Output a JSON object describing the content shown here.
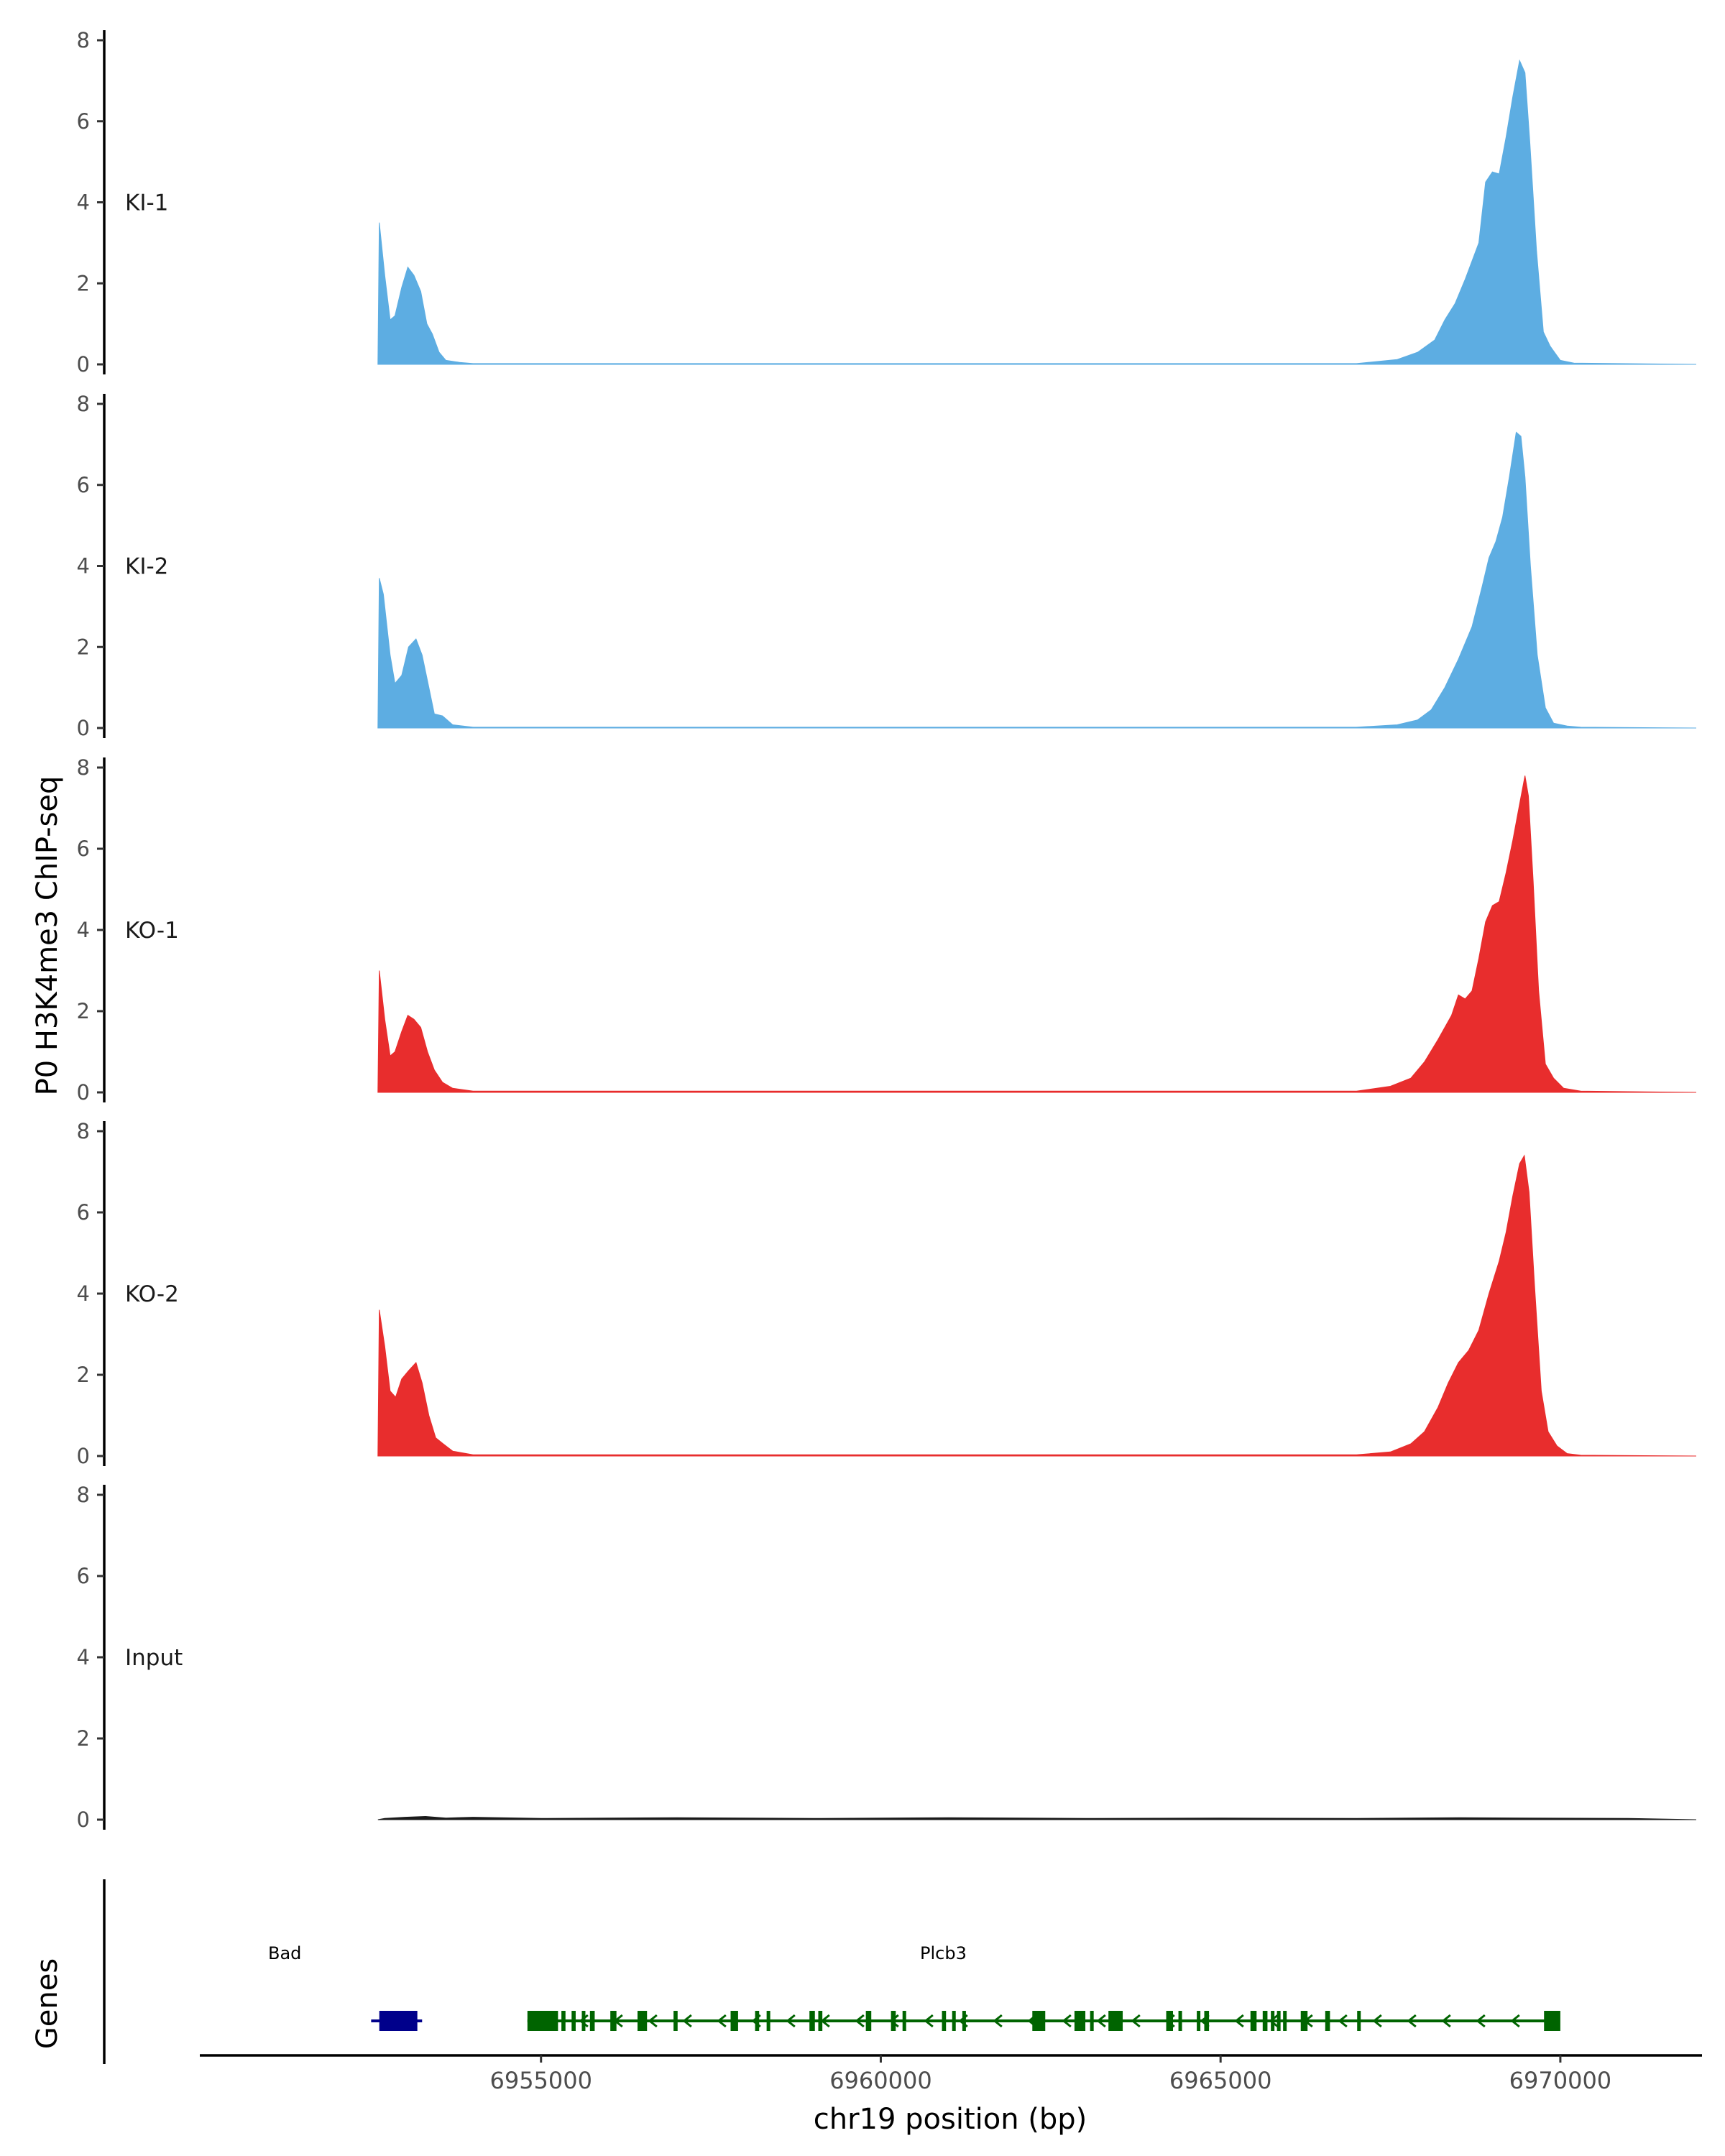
{
  "chart_data": {
    "type": "area",
    "ylabel": "P0 H3K4me3 ChIP-seq",
    "xlabel": "chr19 position (bp)",
    "gene_track_label": "Genes",
    "ylim": [
      0,
      8
    ],
    "yticks": [
      "0",
      "2",
      "4",
      "6",
      "8"
    ],
    "xlim": [
      6950000,
      6972000
    ],
    "xticks": [
      {
        "value": 6955000,
        "label": "6955000"
      },
      {
        "value": 6960000,
        "label": "6960000"
      },
      {
        "value": 6965000,
        "label": "6965000"
      },
      {
        "value": 6970000,
        "label": "6970000"
      }
    ],
    "tracks": [
      {
        "name": "KI-1",
        "color": "#5dade2",
        "points": [
          [
            6952600,
            0
          ],
          [
            6952620,
            3.5
          ],
          [
            6952700,
            2.2
          ],
          [
            6952780,
            1.1
          ],
          [
            6952850,
            1.2
          ],
          [
            6952950,
            1.9
          ],
          [
            6953040,
            2.4
          ],
          [
            6953130,
            2.2
          ],
          [
            6953230,
            1.8
          ],
          [
            6953320,
            1.0
          ],
          [
            6953400,
            0.75
          ],
          [
            6953500,
            0.3
          ],
          [
            6953600,
            0.1
          ],
          [
            6953800,
            0.05
          ],
          [
            6954000,
            0.02
          ],
          [
            6967000,
            0.02
          ],
          [
            6967600,
            0.12
          ],
          [
            6967900,
            0.3
          ],
          [
            6968150,
            0.6
          ],
          [
            6968300,
            1.1
          ],
          [
            6968450,
            1.5
          ],
          [
            6968600,
            2.1
          ],
          [
            6968800,
            3.0
          ],
          [
            6968900,
            4.5
          ],
          [
            6969000,
            4.75
          ],
          [
            6969100,
            4.7
          ],
          [
            6969200,
            5.6
          ],
          [
            6969300,
            6.6
          ],
          [
            6969400,
            7.5
          ],
          [
            6969480,
            7.2
          ],
          [
            6969550,
            5.5
          ],
          [
            6969650,
            2.8
          ],
          [
            6969750,
            0.8
          ],
          [
            6969850,
            0.45
          ],
          [
            6970000,
            0.1
          ],
          [
            6970200,
            0.03
          ],
          [
            6972000,
            0
          ]
        ]
      },
      {
        "name": "KI-2",
        "color": "#5dade2",
        "points": [
          [
            6952600,
            0
          ],
          [
            6952620,
            3.7
          ],
          [
            6952680,
            3.3
          ],
          [
            6952780,
            1.8
          ],
          [
            6952850,
            1.1
          ],
          [
            6952950,
            1.3
          ],
          [
            6953050,
            2.0
          ],
          [
            6953160,
            2.2
          ],
          [
            6953250,
            1.8
          ],
          [
            6953350,
            1.0
          ],
          [
            6953430,
            0.35
          ],
          [
            6953550,
            0.3
          ],
          [
            6953700,
            0.08
          ],
          [
            6954000,
            0.02
          ],
          [
            6967000,
            0.02
          ],
          [
            6967600,
            0.08
          ],
          [
            6967900,
            0.2
          ],
          [
            6968100,
            0.45
          ],
          [
            6968300,
            1.0
          ],
          [
            6968500,
            1.7
          ],
          [
            6968700,
            2.5
          ],
          [
            6968850,
            3.5
          ],
          [
            6968950,
            4.2
          ],
          [
            6969050,
            4.6
          ],
          [
            6969150,
            5.2
          ],
          [
            6969250,
            6.2
          ],
          [
            6969350,
            7.3
          ],
          [
            6969420,
            7.2
          ],
          [
            6969480,
            6.2
          ],
          [
            6969560,
            4.0
          ],
          [
            6969660,
            1.8
          ],
          [
            6969780,
            0.5
          ],
          [
            6969900,
            0.12
          ],
          [
            6970100,
            0.05
          ],
          [
            6970300,
            0.02
          ],
          [
            6972000,
            0
          ]
        ]
      },
      {
        "name": "KO-1",
        "color": "#e82d2d",
        "points": [
          [
            6952600,
            0
          ],
          [
            6952620,
            3.0
          ],
          [
            6952700,
            1.8
          ],
          [
            6952780,
            0.9
          ],
          [
            6952850,
            1.0
          ],
          [
            6952950,
            1.5
          ],
          [
            6953040,
            1.9
          ],
          [
            6953130,
            1.8
          ],
          [
            6953230,
            1.6
          ],
          [
            6953330,
            1.0
          ],
          [
            6953430,
            0.55
          ],
          [
            6953550,
            0.25
          ],
          [
            6953700,
            0.1
          ],
          [
            6954000,
            0.03
          ],
          [
            6967000,
            0.03
          ],
          [
            6967500,
            0.15
          ],
          [
            6967800,
            0.35
          ],
          [
            6968000,
            0.75
          ],
          [
            6968200,
            1.3
          ],
          [
            6968400,
            1.9
          ],
          [
            6968500,
            2.4
          ],
          [
            6968600,
            2.3
          ],
          [
            6968700,
            2.5
          ],
          [
            6968800,
            3.3
          ],
          [
            6968900,
            4.2
          ],
          [
            6969000,
            4.6
          ],
          [
            6969100,
            4.7
          ],
          [
            6969200,
            5.4
          ],
          [
            6969300,
            6.2
          ],
          [
            6969400,
            7.1
          ],
          [
            6969480,
            7.8
          ],
          [
            6969530,
            7.3
          ],
          [
            6969600,
            5.2
          ],
          [
            6969680,
            2.5
          ],
          [
            6969780,
            0.7
          ],
          [
            6969900,
            0.35
          ],
          [
            6970050,
            0.1
          ],
          [
            6970300,
            0.03
          ],
          [
            6972000,
            0
          ]
        ]
      },
      {
        "name": "KO-2",
        "color": "#e82d2d",
        "points": [
          [
            6952600,
            0
          ],
          [
            6952620,
            3.6
          ],
          [
            6952700,
            2.7
          ],
          [
            6952780,
            1.6
          ],
          [
            6952860,
            1.45
          ],
          [
            6952950,
            1.9
          ],
          [
            6953050,
            2.1
          ],
          [
            6953160,
            2.3
          ],
          [
            6953250,
            1.8
          ],
          [
            6953350,
            1.0
          ],
          [
            6953450,
            0.45
          ],
          [
            6953560,
            0.3
          ],
          [
            6953700,
            0.12
          ],
          [
            6954000,
            0.03
          ],
          [
            6967000,
            0.03
          ],
          [
            6967500,
            0.1
          ],
          [
            6967800,
            0.3
          ],
          [
            6968000,
            0.6
          ],
          [
            6968200,
            1.2
          ],
          [
            6968350,
            1.8
          ],
          [
            6968500,
            2.3
          ],
          [
            6968650,
            2.6
          ],
          [
            6968800,
            3.1
          ],
          [
            6968950,
            4.0
          ],
          [
            6969100,
            4.8
          ],
          [
            6969200,
            5.5
          ],
          [
            6969300,
            6.4
          ],
          [
            6969400,
            7.2
          ],
          [
            6969470,
            7.4
          ],
          [
            6969540,
            6.5
          ],
          [
            6969620,
            4.2
          ],
          [
            6969720,
            1.6
          ],
          [
            6969820,
            0.6
          ],
          [
            6969950,
            0.25
          ],
          [
            6970100,
            0.06
          ],
          [
            6970300,
            0.02
          ],
          [
            6972000,
            0
          ]
        ]
      },
      {
        "name": "Input",
        "color": "#1a1a1a",
        "points": [
          [
            6952600,
            0
          ],
          [
            6952700,
            0.03
          ],
          [
            6953000,
            0.06
          ],
          [
            6953300,
            0.08
          ],
          [
            6953600,
            0.04
          ],
          [
            6954000,
            0.06
          ],
          [
            6955000,
            0.03
          ],
          [
            6957000,
            0.05
          ],
          [
            6959000,
            0.03
          ],
          [
            6961000,
            0.05
          ],
          [
            6963000,
            0.03
          ],
          [
            6965000,
            0.04
          ],
          [
            6967000,
            0.03
          ],
          [
            6968500,
            0.05
          ],
          [
            6969500,
            0.04
          ],
          [
            6971000,
            0.03
          ],
          [
            6972000,
            0
          ]
        ]
      }
    ],
    "genes": [
      {
        "name": "Bad",
        "color": "#00008b",
        "strand": "-",
        "start": 6952500,
        "end": 6953250,
        "exons": [
          [
            6952620,
            6953180
          ]
        ]
      },
      {
        "name": "Plcb3",
        "color": "#006400",
        "strand": "-",
        "start": 6954800,
        "end": 6969900,
        "exons": [
          [
            6954800,
            6955250
          ],
          [
            6955300,
            6955360
          ],
          [
            6955450,
            6955510
          ],
          [
            6955600,
            6955640
          ],
          [
            6955720,
            6955790
          ],
          [
            6956020,
            6956110
          ],
          [
            6956420,
            6956560
          ],
          [
            6956950,
            6957010
          ],
          [
            6957790,
            6957900
          ],
          [
            6958150,
            6958210
          ],
          [
            6958320,
            6958370
          ],
          [
            6958950,
            6959030
          ],
          [
            6959080,
            6959140
          ],
          [
            6959780,
            6959860
          ],
          [
            6960150,
            6960220
          ],
          [
            6960320,
            6960370
          ],
          [
            6960900,
            6960960
          ],
          [
            6961050,
            6961100
          ],
          [
            6961200,
            6961240
          ],
          [
            6962230,
            6962420
          ],
          [
            6962850,
            6963010
          ],
          [
            6963080,
            6963130
          ],
          [
            6963350,
            6963560
          ],
          [
            6964200,
            6964300
          ],
          [
            6964380,
            6964420
          ],
          [
            6964650,
            6964700
          ],
          [
            6964760,
            6964830
          ],
          [
            6965440,
            6965530
          ],
          [
            6965620,
            6965690
          ],
          [
            6965740,
            6965790
          ],
          [
            6965830,
            6965870
          ],
          [
            6965920,
            6965960
          ],
          [
            6966180,
            6966280
          ],
          [
            6966540,
            6966610
          ],
          [
            6967010,
            6967050
          ],
          [
            6969760,
            6970000
          ]
        ]
      }
    ]
  }
}
